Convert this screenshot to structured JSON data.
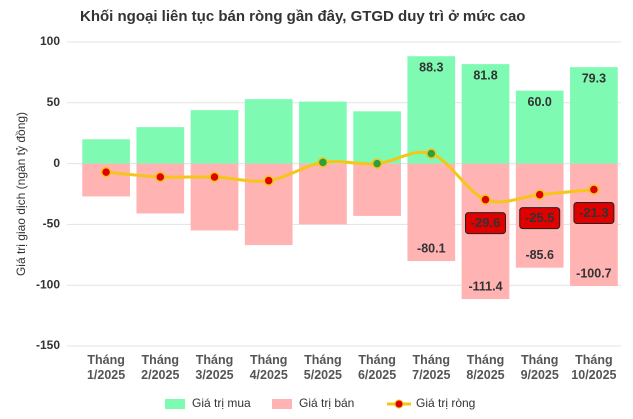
{
  "chart_data": {
    "type": "bar",
    "title": "Khối ngoại liên tục bán ròng gần đây, GTGD duy trì ở mức cao",
    "y_label": "Giá trị giao dịch (ngàn tỷ đồng)",
    "categories": [
      "Tháng 1/2025",
      "Tháng 2/2025",
      "Tháng 3/2025",
      "Tháng 4/2025",
      "Tháng 5/2025",
      "Tháng 6/2025",
      "Tháng 7/2025",
      "Tháng 8/2025",
      "Tháng 9/2025",
      "Tháng 10/2025"
    ],
    "series": [
      {
        "name": "Giá trị mua",
        "color": "#7ffab3",
        "label_color": "#1f7a45",
        "values": [
          20,
          30,
          44,
          53,
          51,
          43,
          88.3,
          81.8,
          60.0,
          79.3
        ],
        "value_labels": [
          null,
          null,
          null,
          null,
          null,
          null,
          "88.3",
          "81.8",
          "60.0",
          "79.3"
        ]
      },
      {
        "name": "Giá trị bán",
        "color": "#ffb3b3",
        "label_color": "#b02020",
        "values": [
          -27,
          -41,
          -55,
          -67,
          -50,
          -43,
          -80.1,
          -111.4,
          -85.6,
          -100.7
        ],
        "value_labels": [
          null,
          null,
          null,
          null,
          null,
          null,
          "-80.1",
          "-111.4",
          "-85.6",
          "-100.7"
        ]
      },
      {
        "name": "Giá trị ròng",
        "type": "line",
        "color": "#f5c518",
        "marker_color": "#e00000",
        "positive_marker_color": "#2e9e3e",
        "values": [
          -7,
          -11,
          -11,
          -14,
          1,
          0,
          8.2,
          -29.6,
          -25.5,
          -21.3
        ],
        "value_labels": [
          null,
          null,
          null,
          null,
          null,
          null,
          null,
          "-29.6",
          "-25.5",
          "-21.3"
        ]
      }
    ],
    "ylim": [
      -150,
      100
    ],
    "yticks": [
      -150,
      -100,
      -50,
      0,
      50,
      100
    ],
    "grid": true
  }
}
